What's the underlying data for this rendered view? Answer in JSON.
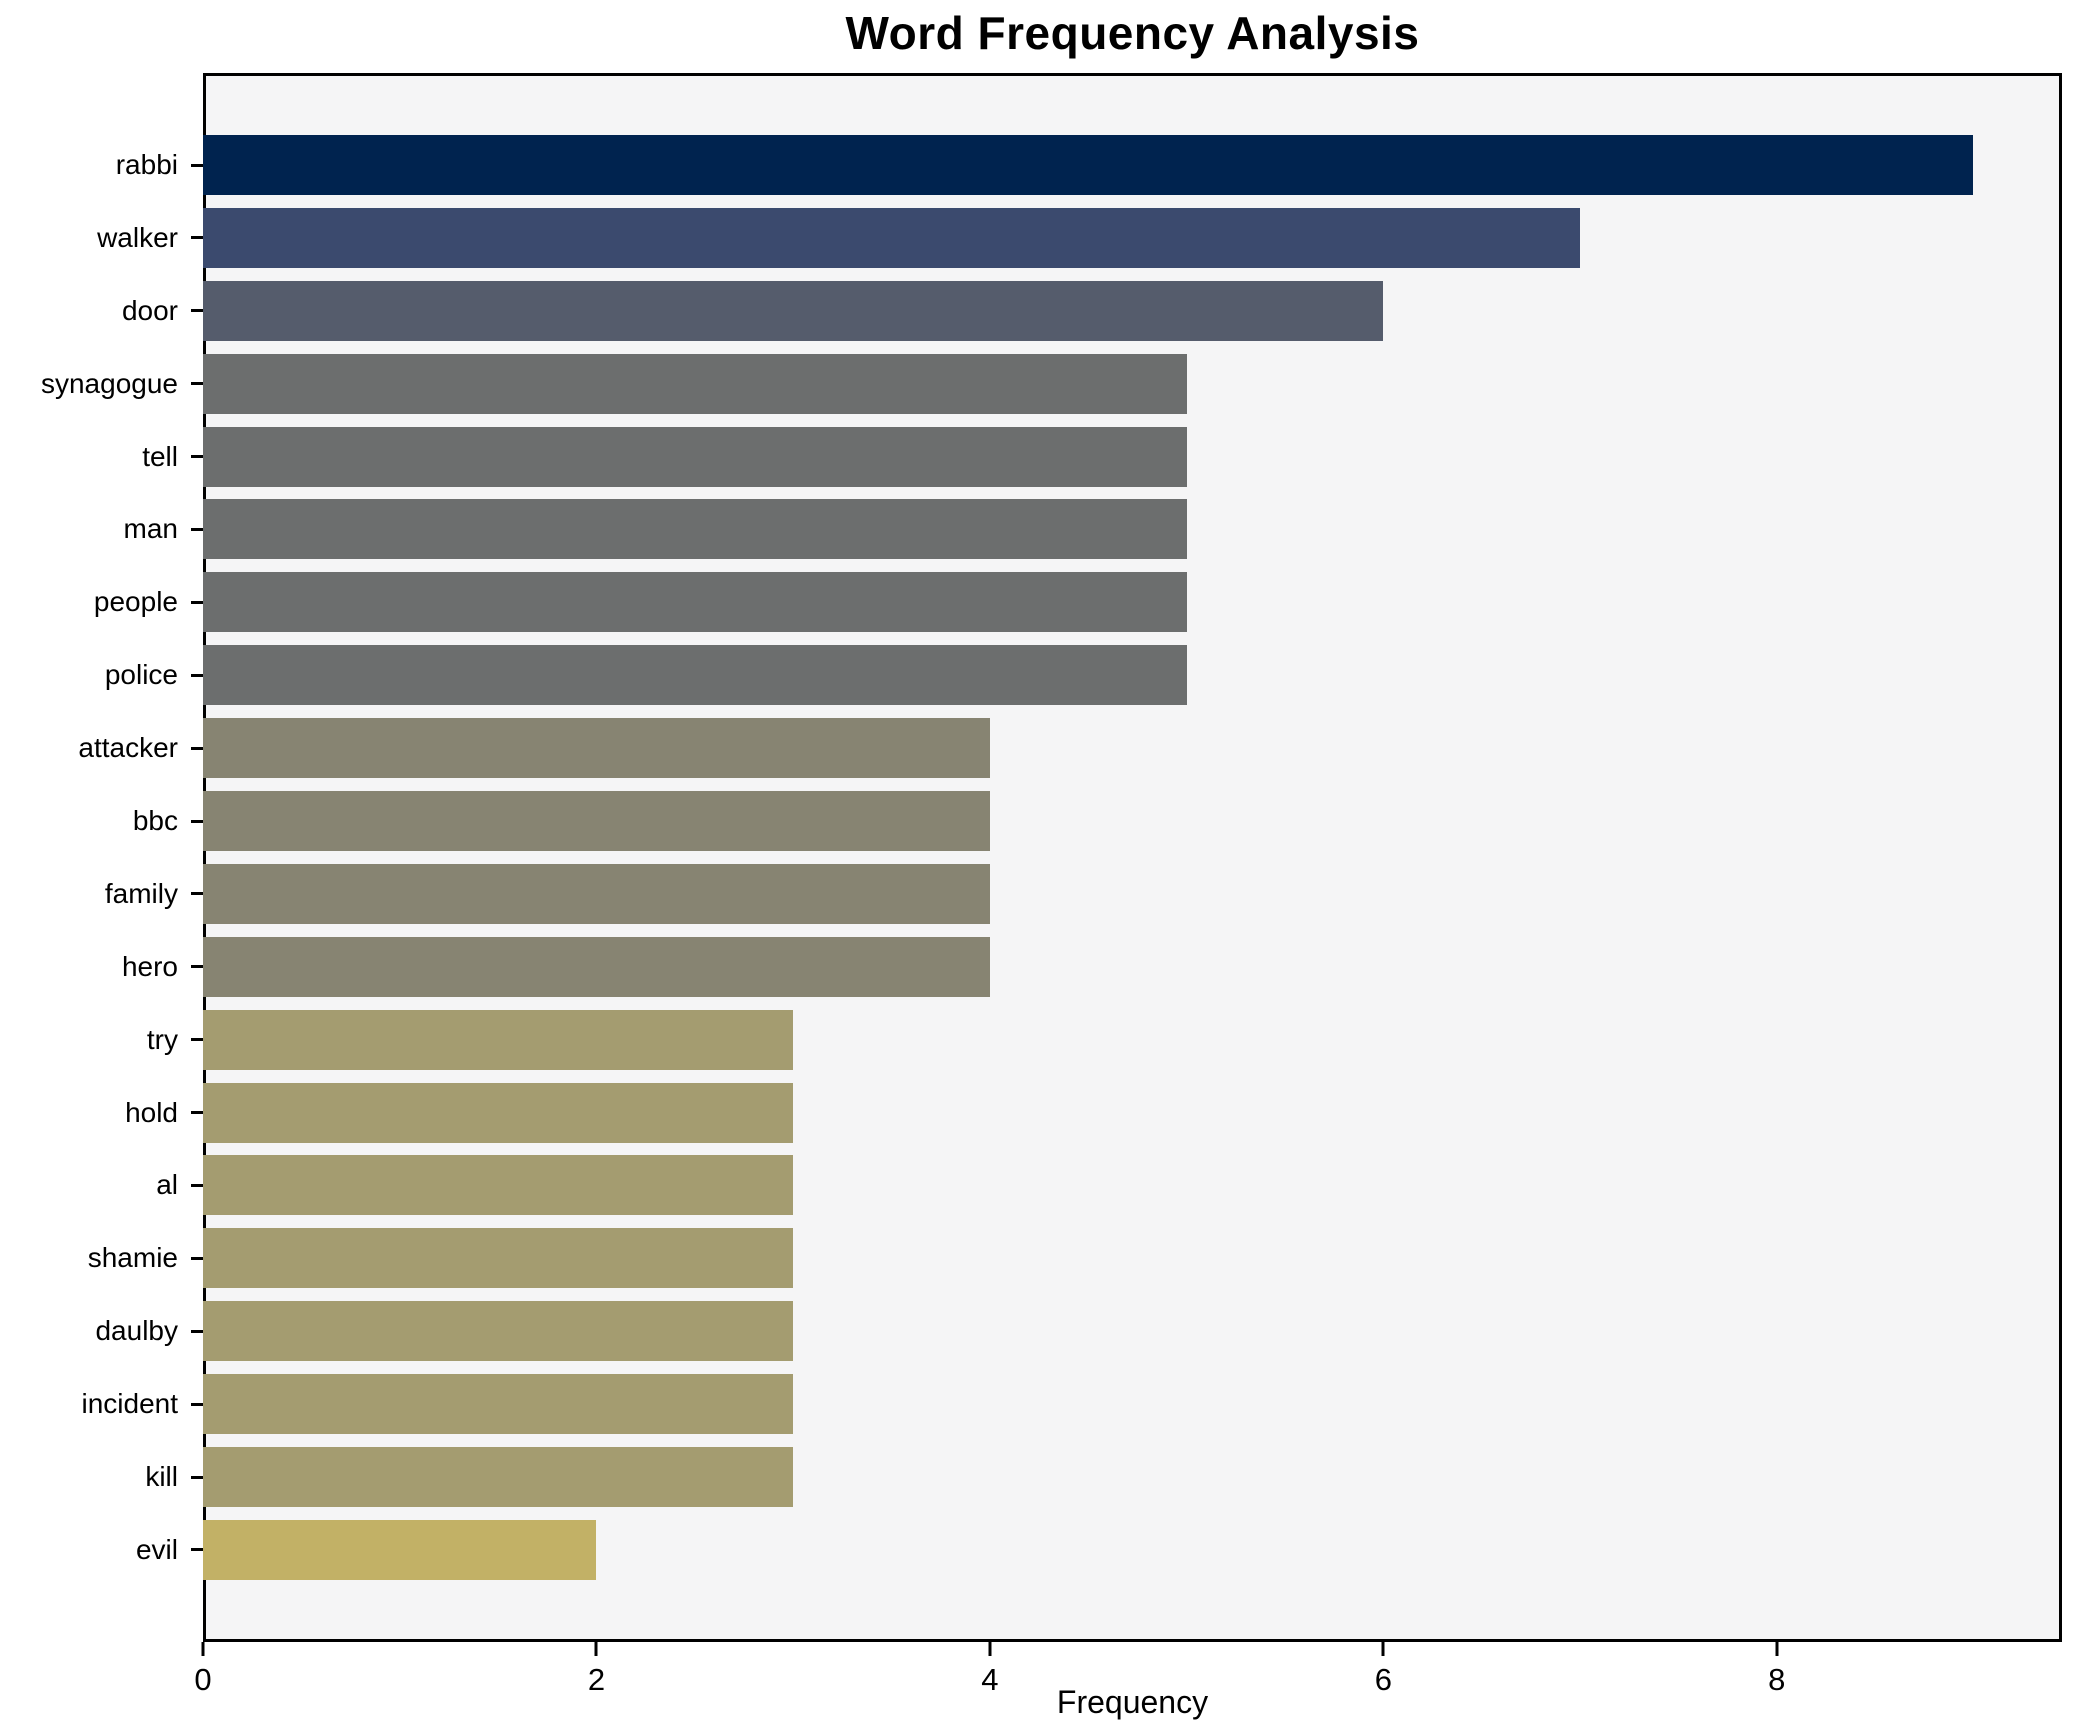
{
  "title": "Word Frequency Analysis",
  "chart_data": {
    "type": "bar",
    "orientation": "horizontal",
    "title": "Word Frequency Analysis",
    "xlabel": "Frequency",
    "ylabel": "",
    "categories": [
      "rabbi",
      "walker",
      "door",
      "synagogue",
      "tell",
      "man",
      "people",
      "police",
      "attacker",
      "bbc",
      "family",
      "hero",
      "try",
      "hold",
      "al",
      "shamie",
      "daulby",
      "incident",
      "kill",
      "evil"
    ],
    "values": [
      9,
      7,
      6,
      5,
      5,
      5,
      5,
      5,
      4,
      4,
      4,
      4,
      3,
      3,
      3,
      3,
      3,
      3,
      3,
      2
    ],
    "bar_colors": [
      "#00234f",
      "#3b4a6e",
      "#555c6c",
      "#6c6e6e",
      "#6c6e6e",
      "#6c6e6e",
      "#6c6e6e",
      "#6c6e6e",
      "#878472",
      "#878472",
      "#878472",
      "#878472",
      "#a49c70",
      "#a49c70",
      "#a49c70",
      "#a49c70",
      "#a49c70",
      "#a49c70",
      "#a49c70",
      "#c2b166"
    ],
    "colormap": "cividis",
    "xlim": [
      0,
      9.45
    ],
    "xticks": [
      0,
      2,
      4,
      6,
      8
    ],
    "grid": false,
    "legend": "none",
    "plot_background": "#f5f5f6",
    "figure_background": "#ffffff",
    "spine_color": "#000000"
  }
}
